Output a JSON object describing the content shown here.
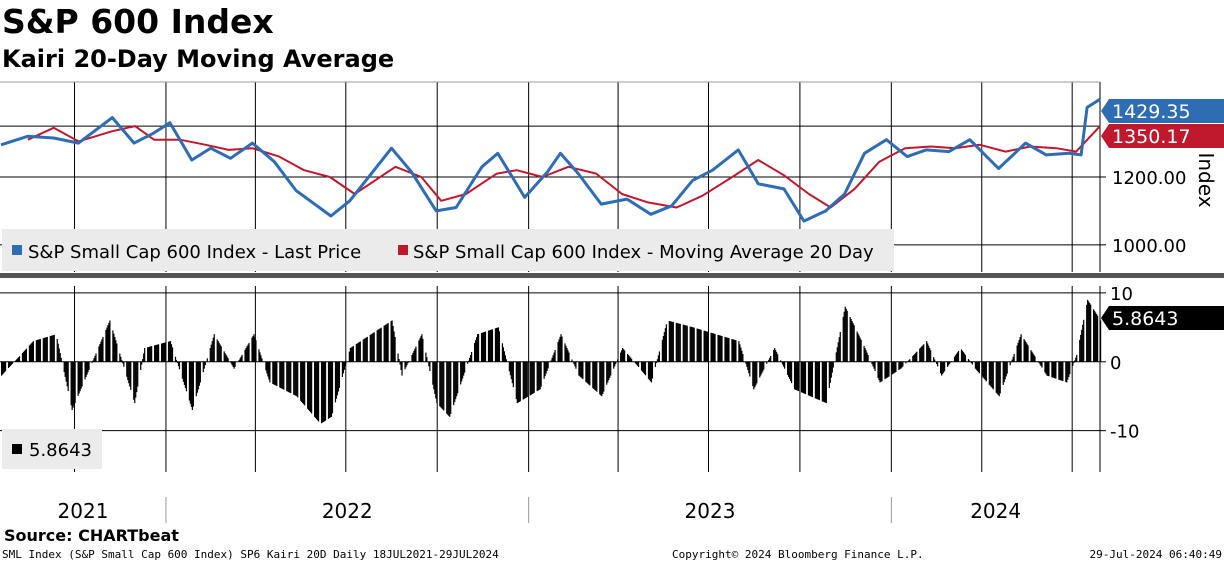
{
  "title": "S&P 600 Index",
  "subtitle": "Kairi 20-Day Moving Average",
  "source": "Source: CHARTbeat",
  "footer": {
    "left": "SML Index (S&P Small Cap 600 Index) SP6 Kairi 20D  Daily 18JUL2021-29JUL2024",
    "center": "Copyright© 2024 Bloomberg Finance L.P.",
    "right": "29-Jul-2024 06:40:49"
  },
  "colors": {
    "price": "#2e6db4",
    "ma": "#c0182c",
    "kairi": "#000000",
    "grid": "#000000",
    "legend_bg": "#ebebeb",
    "separator": "#555555"
  },
  "chart_data": [
    {
      "type": "line",
      "panel": "top",
      "ylabel": "Index",
      "ylim": [
        920,
        1480
      ],
      "yticks": [
        "1200.00",
        "1000.00"
      ],
      "ytick_values": [
        1200,
        1000
      ],
      "x_range": [
        "2021-07-18",
        "2024-07-29"
      ],
      "x_labels": [
        "2021",
        "2022",
        "2023",
        "2024"
      ],
      "legend": [
        "S&P Small Cap 600 Index - Last Price",
        "S&P Small Cap 600 Index - Moving Average 20 Day"
      ],
      "last_values": {
        "price": "1429.35",
        "ma": "1350.17"
      },
      "series": [
        {
          "name": "S&P Small Cap 600 Index - Last Price",
          "dates": [
            "2021-07-19",
            "2021-08-15",
            "2021-09-10",
            "2021-10-05",
            "2021-11-08",
            "2021-11-30",
            "2021-12-20",
            "2022-01-05",
            "2022-01-27",
            "2022-02-15",
            "2022-03-07",
            "2022-03-29",
            "2022-04-20",
            "2022-05-12",
            "2022-06-16",
            "2022-07-05",
            "2022-08-16",
            "2022-09-05",
            "2022-09-30",
            "2022-10-20",
            "2022-11-15",
            "2022-12-01",
            "2022-12-28",
            "2023-01-20",
            "2023-02-02",
            "2023-02-20",
            "2023-03-15",
            "2023-04-10",
            "2023-05-04",
            "2023-05-25",
            "2023-06-15",
            "2023-07-05",
            "2023-07-31",
            "2023-08-20",
            "2023-09-15",
            "2023-10-05",
            "2023-10-27",
            "2023-11-15",
            "2023-12-05",
            "2023-12-27",
            "2024-01-17",
            "2024-02-05",
            "2024-02-28",
            "2024-03-20",
            "2024-04-18",
            "2024-05-15",
            "2024-06-05",
            "2024-06-28",
            "2024-07-10",
            "2024-07-16",
            "2024-07-29"
          ],
          "values": [
            1295,
            1320,
            1315,
            1300,
            1375,
            1300,
            1330,
            1360,
            1250,
            1285,
            1255,
            1300,
            1245,
            1160,
            1085,
            1130,
            1285,
            1215,
            1100,
            1110,
            1230,
            1270,
            1140,
            1215,
            1270,
            1210,
            1120,
            1135,
            1090,
            1115,
            1190,
            1220,
            1280,
            1180,
            1165,
            1070,
            1100,
            1150,
            1270,
            1310,
            1260,
            1280,
            1275,
            1310,
            1225,
            1300,
            1265,
            1270,
            1265,
            1405,
            1429
          ]
        },
        {
          "name": "S&P Small Cap 600 Index - Moving Average 20 Day",
          "dates": [
            "2021-08-15",
            "2021-09-10",
            "2021-10-05",
            "2021-11-08",
            "2021-12-01",
            "2021-12-20",
            "2022-01-15",
            "2022-02-10",
            "2022-03-05",
            "2022-03-29",
            "2022-04-25",
            "2022-05-20",
            "2022-06-15",
            "2022-07-10",
            "2022-08-20",
            "2022-09-15",
            "2022-10-05",
            "2022-10-30",
            "2022-11-30",
            "2022-12-20",
            "2023-01-15",
            "2023-02-10",
            "2023-03-10",
            "2023-04-05",
            "2023-05-01",
            "2023-05-30",
            "2023-06-25",
            "2023-07-25",
            "2023-08-20",
            "2023-09-15",
            "2023-10-10",
            "2023-11-01",
            "2023-11-25",
            "2023-12-20",
            "2024-01-15",
            "2024-02-10",
            "2024-03-05",
            "2024-03-30",
            "2024-04-25",
            "2024-05-20",
            "2024-06-15",
            "2024-07-05",
            "2024-07-29"
          ],
          "values": [
            1310,
            1345,
            1305,
            1335,
            1350,
            1310,
            1310,
            1295,
            1280,
            1285,
            1260,
            1220,
            1200,
            1150,
            1230,
            1200,
            1130,
            1150,
            1210,
            1220,
            1200,
            1230,
            1210,
            1150,
            1125,
            1110,
            1145,
            1200,
            1250,
            1205,
            1150,
            1110,
            1165,
            1245,
            1285,
            1290,
            1285,
            1295,
            1275,
            1290,
            1285,
            1275,
            1350
          ]
        }
      ]
    },
    {
      "type": "bar",
      "panel": "bottom",
      "name": "Kairi 20-Day",
      "ylim": [
        -16,
        11
      ],
      "yticks": [
        "10",
        "0",
        "-10"
      ],
      "ytick_values": [
        10,
        0,
        -10
      ],
      "last_value": "5.8643",
      "legend": [
        "5.8643"
      ],
      "dates": [
        "2021-07-19",
        "2021-08-20",
        "2021-09-12",
        "2021-09-28",
        "2021-11-05",
        "2021-11-30",
        "2021-12-10",
        "2022-01-05",
        "2022-01-27",
        "2022-02-18",
        "2022-03-10",
        "2022-03-30",
        "2022-04-15",
        "2022-05-12",
        "2022-06-05",
        "2022-06-16",
        "2022-07-05",
        "2022-08-16",
        "2022-08-26",
        "2022-09-15",
        "2022-09-30",
        "2022-10-13",
        "2022-11-10",
        "2022-12-01",
        "2022-12-20",
        "2023-01-12",
        "2023-02-02",
        "2023-02-20",
        "2023-03-15",
        "2023-04-05",
        "2023-05-04",
        "2023-05-20",
        "2023-06-15",
        "2023-07-31",
        "2023-08-15",
        "2023-09-05",
        "2023-09-25",
        "2023-10-27",
        "2023-11-15",
        "2023-12-05",
        "2023-12-20",
        "2024-01-10",
        "2024-02-05",
        "2024-02-20",
        "2024-03-10",
        "2024-03-25",
        "2024-04-18",
        "2024-05-10",
        "2024-06-05",
        "2024-06-25",
        "2024-07-05",
        "2024-07-16",
        "2024-07-29"
      ],
      "values": [
        -2,
        3,
        4,
        -7,
        6,
        -6,
        2,
        3,
        -7,
        4,
        -1,
        4,
        -3,
        -5,
        -9,
        -8,
        2,
        6,
        -2,
        4,
        -6,
        -8,
        4,
        5,
        -6,
        -4,
        4,
        -2,
        -5,
        2,
        -3,
        6,
        5,
        3,
        -4,
        2,
        -4,
        -6,
        8,
        2,
        -3,
        -1,
        3,
        -2,
        2,
        -1,
        -5,
        4,
        -2,
        -3,
        1,
        9,
        6
      ]
    }
  ]
}
